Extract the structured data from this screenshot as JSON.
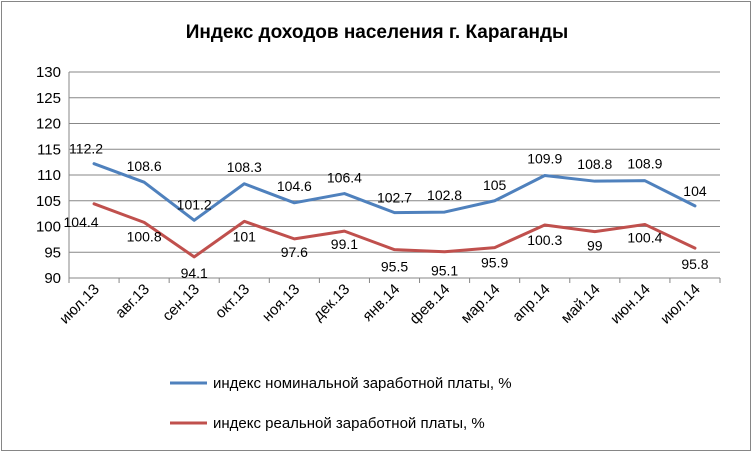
{
  "chart_data": {
    "type": "line",
    "title": "Индекс доходов населения г. Караганды",
    "categories": [
      "июл.13",
      "авг.13",
      "сен.13",
      "окт.13",
      "ноя.13",
      "дек.13",
      "янв.14",
      "фев.14",
      "мар.14",
      "апр.14",
      "май.14",
      "июн.14",
      "июл.14"
    ],
    "ylim": [
      90,
      130
    ],
    "yticks": [
      90,
      95,
      100,
      105,
      110,
      115,
      120,
      125,
      130
    ],
    "grid": true,
    "legend_position": "bottom",
    "series": [
      {
        "name": "индекс номинальной заработной платы, %",
        "color": "#4F81BD",
        "values": [
          112.2,
          108.6,
          101.2,
          108.3,
          104.6,
          106.4,
          102.7,
          102.8,
          105,
          109.9,
          108.8,
          108.9,
          104
        ],
        "labels": [
          "112.2",
          "108.6",
          "101.2",
          "108.3",
          "104.6",
          "106.4",
          "102.7",
          "102.8",
          "105",
          "109.9",
          "108.8",
          "108.9",
          "104"
        ]
      },
      {
        "name": "индекс реальной заработной платы, %",
        "color": "#C0504D",
        "values": [
          104.4,
          100.8,
          94.1,
          101,
          97.6,
          99.1,
          95.5,
          95.1,
          95.9,
          100.3,
          99,
          100.4,
          95.8
        ],
        "labels": [
          "104.4",
          "100.8",
          "94.1",
          "101",
          "97.6",
          "99.1",
          "95.5",
          "95.1",
          "95.9",
          "100.3",
          "99",
          "100.4",
          "95.8"
        ]
      }
    ]
  }
}
